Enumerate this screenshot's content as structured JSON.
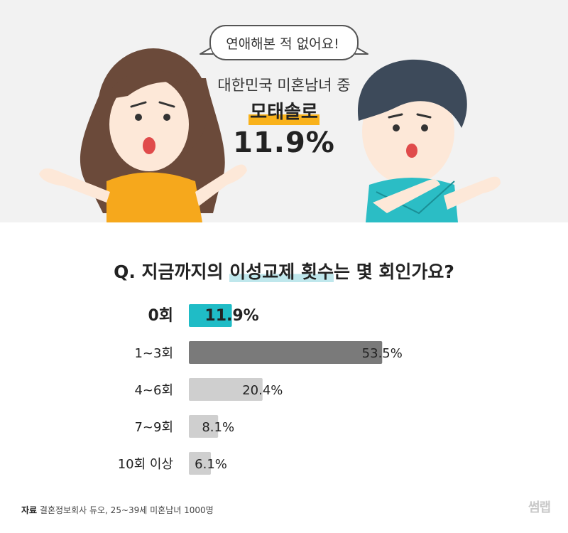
{
  "hero": {
    "speech": "연애해본 적 없어요!",
    "line1": "대한민국 미혼남녀 중",
    "highlight": "모태솔로",
    "percent": "11.9%"
  },
  "question": {
    "prefix": "Q. 지금까지의 ",
    "highlight": "이성교제 횟수",
    "suffix": "는 몇 회인가요?"
  },
  "chart_data": {
    "type": "bar",
    "orientation": "horizontal",
    "categories": [
      "0회",
      "1~3회",
      "4~6회",
      "7~9회",
      "10회 이상"
    ],
    "values": [
      11.9,
      53.5,
      20.4,
      8.1,
      6.1
    ],
    "value_labels": [
      "11.9%",
      "53.5%",
      "20.4%",
      "8.1%",
      "6.1%"
    ],
    "colors": [
      "#1fbcc6",
      "#7a7a7a",
      "#cfcfcf",
      "#cfcfcf",
      "#cfcfcf"
    ],
    "highlight_index": 0,
    "xlim": [
      0,
      60
    ]
  },
  "source": {
    "label": "자료",
    "text": "결혼정보회사 듀오, 25~39세 미혼남녀 1000명"
  },
  "logo": "썸랩",
  "colors": {
    "hero_bg": "#f2f2f2",
    "accent_yellow": "#f9b21b",
    "accent_teal": "#1fbcc6"
  }
}
